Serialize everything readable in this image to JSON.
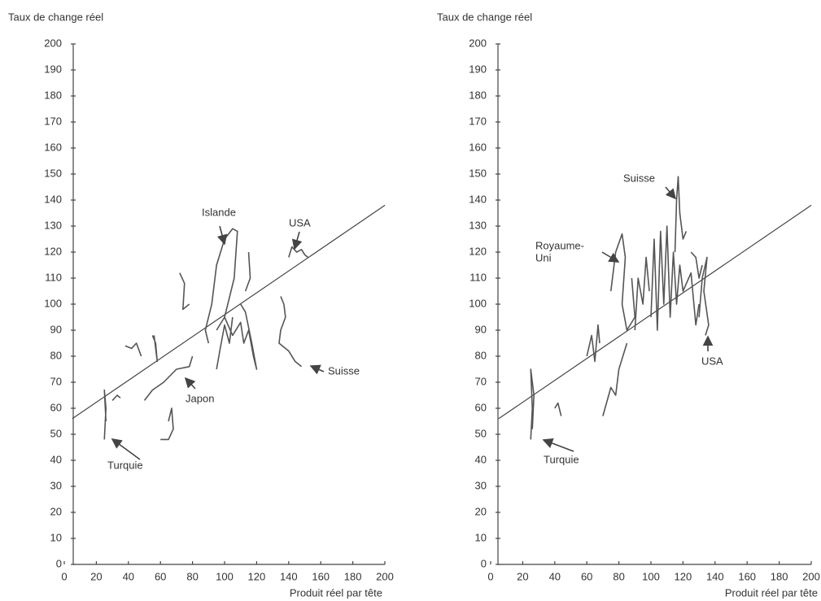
{
  "chart_data": [
    {
      "type": "line",
      "y_label": "Taux de change réel",
      "x_label": "Produit réel  par tête",
      "xlim": [
        0,
        200
      ],
      "ylim": [
        0,
        200
      ],
      "xticks": [
        0,
        20,
        40,
        60,
        80,
        100,
        120,
        140,
        160,
        180,
        200
      ],
      "yticks": [
        0,
        10,
        20,
        30,
        40,
        50,
        60,
        70,
        80,
        90,
        100,
        110,
        120,
        130,
        140,
        150,
        160,
        170,
        180,
        190,
        200
      ],
      "fit": {
        "x": [
          5,
          200
        ],
        "y": [
          56,
          138
        ]
      },
      "series": [
        {
          "x": [
            25,
            26,
            25,
            26
          ],
          "y": [
            48,
            60,
            67,
            55
          ]
        },
        {
          "x": [
            90,
            88,
            92,
            95,
            100,
            105,
            108,
            106,
            100,
            95
          ],
          "y": [
            85,
            90,
            100,
            115,
            125,
            129,
            128,
            110,
            95,
            90
          ]
        },
        {
          "x": [
            140,
            142,
            145,
            148,
            150,
            152
          ],
          "y": [
            118,
            122,
            120,
            121,
            119,
            118
          ]
        },
        {
          "x": [
            135,
            137,
            138,
            135,
            134,
            136,
            140,
            144,
            148
          ],
          "y": [
            103,
            100,
            95,
            90,
            85,
            84,
            82,
            78,
            76
          ]
        },
        {
          "x": [
            50,
            55,
            62,
            70,
            78,
            80
          ],
          "y": [
            63,
            67,
            70,
            75,
            76,
            80
          ]
        },
        {
          "x": [
            38,
            42,
            45,
            48
          ],
          "y": [
            84,
            83,
            85,
            80
          ]
        },
        {
          "x": [
            55,
            57,
            58,
            56
          ],
          "y": [
            88,
            85,
            78,
            88
          ]
        },
        {
          "x": [
            72,
            75,
            74,
            78
          ],
          "y": [
            112,
            108,
            98,
            100
          ]
        },
        {
          "x": [
            115,
            116,
            113
          ],
          "y": [
            120,
            110,
            105
          ]
        },
        {
          "x": [
            60,
            65,
            68,
            67,
            65
          ],
          "y": [
            48,
            48,
            52,
            60,
            55
          ]
        },
        {
          "x": [
            30,
            33,
            35
          ],
          "y": [
            63,
            65,
            64
          ]
        },
        {
          "x": [
            100,
            105,
            110,
            112,
            115,
            118,
            120,
            117,
            113,
            110
          ],
          "y": [
            95,
            88,
            93,
            85,
            90,
            80,
            75,
            85,
            97,
            100
          ]
        },
        {
          "x": [
            95,
            97,
            100,
            103,
            105
          ],
          "y": [
            75,
            82,
            92,
            85,
            95
          ]
        }
      ],
      "annotations": [
        {
          "lines": [
            "Islande"
          ]
        },
        {
          "lines": [
            "USA"
          ]
        },
        {
          "lines": [
            "Suisse"
          ]
        },
        {
          "lines": [
            "Japon"
          ]
        },
        {
          "lines": [
            "Turquie"
          ]
        }
      ]
    },
    {
      "type": "line",
      "y_label": "Taux de change réel",
      "x_label": "Produit réel  par tête",
      "xlim": [
        0,
        200
      ],
      "ylim": [
        0,
        200
      ],
      "xticks": [
        0,
        20,
        40,
        60,
        80,
        100,
        120,
        140,
        160,
        180,
        200
      ],
      "yticks": [
        0,
        10,
        20,
        30,
        40,
        50,
        60,
        70,
        80,
        90,
        100,
        110,
        120,
        130,
        140,
        150,
        160,
        170,
        180,
        190,
        200
      ],
      "fit": {
        "x": [
          5,
          200
        ],
        "y": [
          56,
          138
        ]
      },
      "series": [
        {
          "x": [
            25,
            26,
            25,
            27,
            26
          ],
          "y": [
            48,
            60,
            75,
            65,
            52
          ]
        },
        {
          "x": [
            115,
            116,
            117,
            118,
            120,
            122
          ],
          "y": [
            120,
            140,
            149,
            135,
            125,
            128
          ]
        },
        {
          "x": [
            75,
            78,
            82,
            84,
            82,
            85,
            90,
            88
          ],
          "y": [
            105,
            120,
            127,
            118,
            100,
            90,
            95,
            110
          ]
        },
        {
          "x": [
            130,
            132,
            135,
            133,
            136,
            134
          ],
          "y": [
            95,
            110,
            118,
            105,
            92,
            88
          ]
        },
        {
          "x": [
            100,
            102,
            104,
            106,
            108,
            110,
            112,
            114,
            116,
            118,
            120,
            125,
            128,
            130
          ],
          "y": [
            95,
            125,
            90,
            128,
            100,
            130,
            95,
            120,
            100,
            115,
            105,
            112,
            92,
            100
          ]
        },
        {
          "x": [
            60,
            63,
            65,
            67,
            68
          ],
          "y": [
            80,
            88,
            78,
            92,
            85
          ]
        },
        {
          "x": [
            40,
            42,
            44
          ],
          "y": [
            60,
            62,
            57
          ]
        },
        {
          "x": [
            70,
            75,
            78,
            80,
            85
          ],
          "y": [
            57,
            68,
            65,
            75,
            85
          ]
        },
        {
          "x": [
            90,
            92,
            95,
            97,
            99
          ],
          "y": [
            90,
            110,
            100,
            118,
            105
          ]
        },
        {
          "x": [
            125,
            128,
            130,
            132
          ],
          "y": [
            120,
            118,
            110,
            115
          ]
        }
      ],
      "annotations": [
        {
          "lines": [
            "Suisse"
          ]
        },
        {
          "lines": [
            "Royaume-",
            "Uni"
          ]
        },
        {
          "lines": [
            "USA"
          ]
        },
        {
          "lines": [
            "Turquie"
          ]
        }
      ]
    }
  ]
}
